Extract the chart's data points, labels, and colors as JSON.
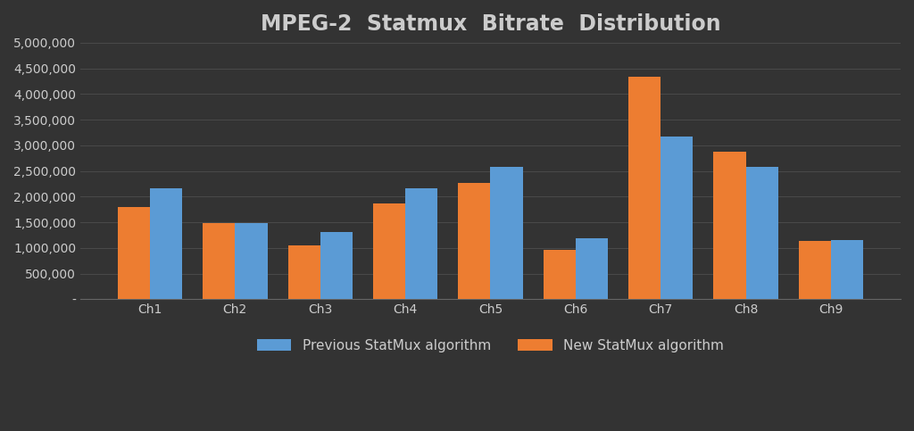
{
  "title": "MPEG-2  Statmux  Bitrate  Distribution",
  "channels": [
    "Ch1",
    "Ch2",
    "Ch3",
    "Ch4",
    "Ch5",
    "Ch6",
    "Ch7",
    "Ch8",
    "Ch9"
  ],
  "new_vals": [
    1800000,
    1480000,
    1060000,
    1870000,
    2270000,
    960000,
    4330000,
    2880000,
    1130000
  ],
  "prev_vals": [
    2170000,
    1490000,
    1310000,
    2170000,
    2590000,
    1190000,
    3170000,
    2590000,
    1150000
  ],
  "prev_color": "#5B9BD5",
  "new_color": "#ED7D31",
  "background_color": "#333333",
  "plot_bg_color": "#333333",
  "text_color": "#CCCCCC",
  "grid_color": "#4A4A4A",
  "ylim": [
    0,
    5000000
  ],
  "yticks": [
    0,
    500000,
    1000000,
    1500000,
    2000000,
    2500000,
    3000000,
    3500000,
    4000000,
    4500000,
    5000000
  ],
  "legend_labels": [
    "Previous StatMux algorithm",
    "New StatMux algorithm"
  ],
  "title_fontsize": 17,
  "tick_fontsize": 10,
  "legend_fontsize": 11,
  "bar_width": 0.38
}
